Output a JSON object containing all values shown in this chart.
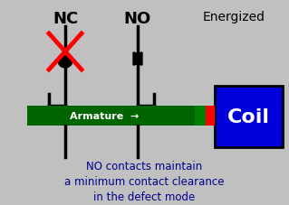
{
  "bg_color": "#c0c0c0",
  "title_nc": "NC",
  "title_no": "NO",
  "energized_label": "Energized",
  "coil_label": "Coil",
  "armature_label": "Armature  →",
  "bottom_text": "NO contacts maintain\na minimum contact clearance\nin the defect mode",
  "armature_color": "#006400",
  "coil_color": "#0000dd",
  "coil_text_color": "#ffffff",
  "red_connector_color": "#ff0000",
  "green_connector_color": "#008000",
  "x_color": "#ff0000",
  "bottom_text_color": "#00008b",
  "label_color": "#000000",
  "contact_color": "#000000"
}
